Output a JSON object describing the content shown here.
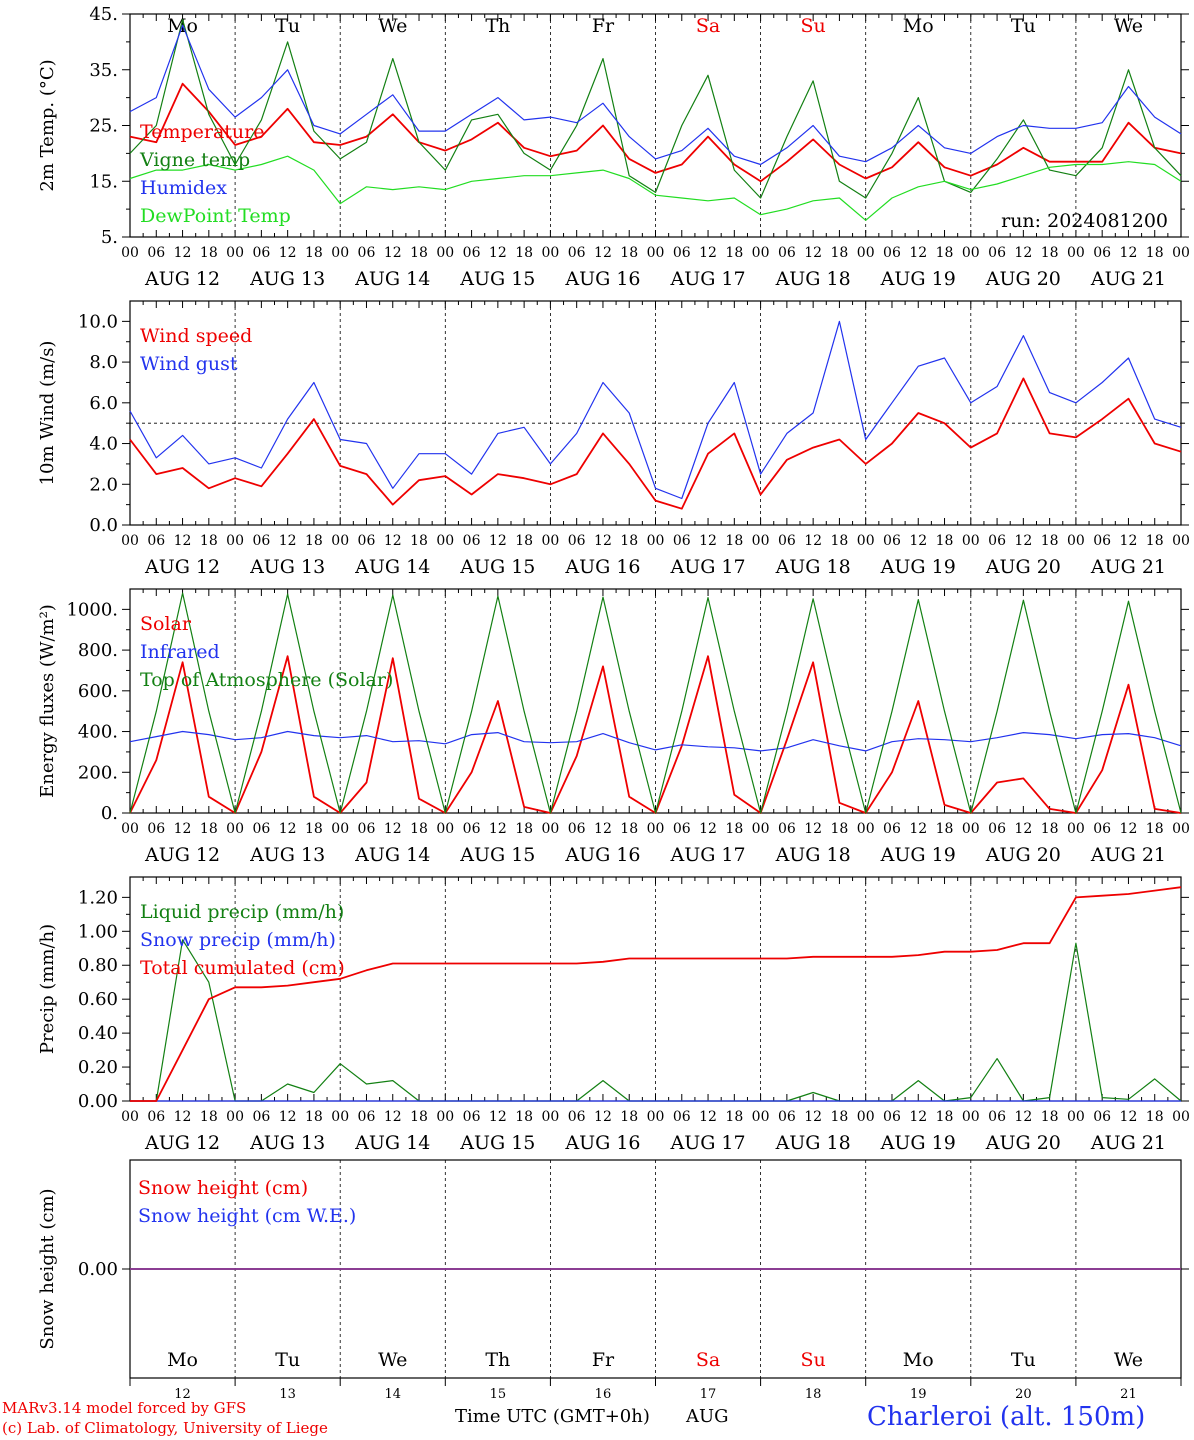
{
  "colors": {
    "red": "#ee0000",
    "blue": "#2233ee",
    "green": "#138013",
    "lightgreen": "#22dd22",
    "purple": "#7b3fa0",
    "axis": "#000000",
    "grid": "#000000"
  },
  "days": {
    "weekday_labels": [
      "Mo",
      "Tu",
      "We",
      "Th",
      "Fr",
      "Sa",
      "Su",
      "Mo",
      "Tu",
      "We"
    ],
    "weekend": [
      false,
      false,
      false,
      false,
      false,
      true,
      true,
      false,
      false,
      false
    ],
    "date_labels": [
      "AUG 12",
      "AUG 13",
      "AUG 14",
      "AUG 15",
      "AUG 16",
      "AUG 17",
      "AUG 18",
      "AUG 19",
      "AUG 20",
      "AUG 21"
    ],
    "hour_labels": [
      "00",
      "06",
      "12",
      "18"
    ],
    "final_hour_label": "00",
    "day_numbers": [
      "12",
      "13",
      "14",
      "15",
      "16",
      "17",
      "18",
      "19",
      "20",
      "21"
    ]
  },
  "footer": {
    "model": "MARv3.14 model forced by GFS",
    "credit": "(c) Lab. of Climatology, University of Liege",
    "xlabel": "Time UTC (GMT+0h)",
    "month": "AUG",
    "station": "Charleroi (alt. 150m)"
  },
  "chart_data": [
    {
      "type": "line",
      "ylabel": "2m Temp. (°C)",
      "ylim": [
        5,
        45
      ],
      "yticks": [
        5,
        15,
        25,
        35,
        45
      ],
      "ytick_labels": [
        "5.",
        "15.",
        "25.",
        "35.",
        "45."
      ],
      "annotation": "run: 2024081200",
      "x_hours": [
        0,
        6,
        12,
        18,
        24,
        30,
        36,
        42,
        48,
        54,
        60,
        66,
        72,
        78,
        84,
        90,
        96,
        102,
        108,
        114,
        120,
        126,
        132,
        138,
        144,
        150,
        156,
        162,
        168,
        174,
        180,
        186,
        192,
        198,
        204,
        210,
        216,
        222,
        228,
        234,
        240
      ],
      "series": [
        {
          "name": "Temperature",
          "color": "red",
          "values": [
            23,
            22,
            32.5,
            27.5,
            21.5,
            23,
            28,
            22,
            21.5,
            23,
            27,
            22,
            20.5,
            22.5,
            25.5,
            21,
            19.5,
            20.5,
            25,
            19,
            16.5,
            18,
            23,
            18,
            15,
            18.5,
            22.5,
            18,
            15.5,
            17.5,
            22,
            17.5,
            16,
            18,
            21,
            18.5,
            18.5,
            18.5,
            25.5,
            21,
            20
          ]
        },
        {
          "name": "Vigne temp",
          "color": "green",
          "values": [
            20,
            25,
            44,
            27,
            18,
            26,
            40,
            24,
            19,
            22,
            37,
            22,
            17,
            26,
            27,
            20,
            17,
            25,
            37,
            16,
            13,
            25,
            34,
            17,
            12,
            23,
            33,
            15,
            12,
            20,
            30,
            15,
            13,
            19,
            26,
            17,
            16,
            21,
            35,
            21,
            16
          ]
        },
        {
          "name": "Humidex",
          "color": "blue",
          "values": [
            27.5,
            30,
            43,
            31.5,
            26.5,
            30,
            35,
            25,
            23.5,
            27,
            30.5,
            24,
            24,
            27,
            30,
            26,
            26.5,
            25.5,
            29,
            23,
            19,
            20.5,
            24.5,
            19.5,
            18,
            21,
            25,
            19.5,
            18.5,
            21,
            25,
            21,
            20,
            23,
            25,
            24.5,
            24.5,
            25.5,
            32,
            26.5,
            23.5
          ]
        },
        {
          "name": "DewPoint Temp",
          "color": "lightgreen",
          "values": [
            15.5,
            17,
            17,
            18,
            17,
            18,
            19.5,
            17,
            11,
            14,
            13.5,
            14,
            13.5,
            15,
            15.5,
            16,
            16,
            16.5,
            17,
            15.5,
            12.5,
            12,
            11.5,
            12,
            9,
            10,
            11.5,
            12,
            8,
            12,
            14,
            15,
            13.5,
            14.5,
            16,
            17.5,
            18,
            18,
            18.5,
            18,
            15
          ]
        }
      ]
    },
    {
      "type": "line",
      "ylabel": "10m Wind (m/s)",
      "ylim": [
        0,
        11
      ],
      "yticks": [
        0,
        2,
        4,
        6,
        8,
        10
      ],
      "ytick_labels": [
        "0.0",
        "2.0",
        "4.0",
        "6.0",
        "8.0",
        "10.0"
      ],
      "reference_line": 5,
      "x_hours": [
        0,
        6,
        12,
        18,
        24,
        30,
        36,
        42,
        48,
        54,
        60,
        66,
        72,
        78,
        84,
        90,
        96,
        102,
        108,
        114,
        120,
        126,
        132,
        138,
        144,
        150,
        156,
        162,
        168,
        174,
        180,
        186,
        192,
        198,
        204,
        210,
        216,
        222,
        228,
        234,
        240
      ],
      "series": [
        {
          "name": "Wind speed",
          "color": "red",
          "values": [
            4.2,
            2.5,
            2.8,
            1.8,
            2.3,
            1.9,
            3.5,
            5.2,
            2.9,
            2.5,
            1.0,
            2.2,
            2.4,
            1.5,
            2.5,
            2.3,
            2.0,
            2.5,
            4.5,
            3.0,
            1.2,
            0.8,
            3.5,
            4.5,
            1.5,
            3.2,
            3.8,
            4.2,
            3.0,
            4.0,
            5.5,
            5.0,
            3.8,
            4.5,
            7.2,
            4.5,
            4.3,
            5.2,
            6.2,
            4.0,
            3.6
          ]
        },
        {
          "name": "Wind gust",
          "color": "blue",
          "values": [
            5.6,
            3.3,
            4.4,
            3.0,
            3.3,
            2.8,
            5.2,
            7.0,
            4.2,
            4.0,
            1.8,
            3.5,
            3.5,
            2.5,
            4.5,
            4.8,
            3.0,
            4.5,
            7.0,
            5.5,
            1.8,
            1.3,
            5.0,
            7.0,
            2.5,
            4.5,
            5.5,
            10.0,
            4.2,
            6.0,
            7.8,
            8.2,
            6.0,
            6.8,
            9.3,
            6.5,
            6.0,
            7.0,
            8.2,
            5.2,
            4.8
          ]
        }
      ]
    },
    {
      "type": "line",
      "ylabel": "Energy fluxes (W/m²)",
      "ylim": [
        0,
        1100
      ],
      "yticks": [
        0,
        200,
        400,
        600,
        800,
        1000
      ],
      "ytick_labels": [
        "0.",
        "200.",
        "400.",
        "600.",
        "800.",
        "1000."
      ],
      "x_hours": [
        0,
        6,
        12,
        18,
        24,
        30,
        36,
        42,
        48,
        54,
        60,
        66,
        72,
        78,
        84,
        90,
        96,
        102,
        108,
        114,
        120,
        126,
        132,
        138,
        144,
        150,
        156,
        162,
        168,
        174,
        180,
        186,
        192,
        198,
        204,
        210,
        216,
        222,
        228,
        234,
        240
      ],
      "series": [
        {
          "name": "Solar",
          "color": "red",
          "values": [
            0,
            260,
            740,
            80,
            0,
            300,
            770,
            80,
            0,
            150,
            760,
            70,
            0,
            200,
            550,
            30,
            0,
            280,
            720,
            80,
            0,
            330,
            770,
            90,
            0,
            360,
            740,
            50,
            0,
            200,
            550,
            40,
            0,
            150,
            170,
            20,
            0,
            210,
            630,
            20,
            0
          ]
        },
        {
          "name": "Infrared",
          "color": "blue",
          "values": [
            350,
            375,
            400,
            385,
            360,
            370,
            400,
            380,
            370,
            380,
            350,
            355,
            340,
            385,
            395,
            350,
            345,
            350,
            390,
            345,
            310,
            335,
            325,
            320,
            305,
            320,
            360,
            330,
            305,
            350,
            365,
            360,
            350,
            370,
            395,
            385,
            365,
            385,
            390,
            370,
            330
          ]
        },
        {
          "name": "Top of Atmosphere (Solar)",
          "color": "green",
          "values": [
            0,
            500,
            1080,
            500,
            0,
            500,
            1075,
            500,
            0,
            500,
            1070,
            500,
            0,
            500,
            1065,
            500,
            0,
            500,
            1060,
            500,
            0,
            500,
            1058,
            500,
            0,
            500,
            1052,
            500,
            0,
            500,
            1048,
            500,
            0,
            500,
            1045,
            500,
            0,
            500,
            1040,
            500,
            0
          ]
        }
      ]
    },
    {
      "type": "line",
      "ylabel": "Precip (mm/h)",
      "ylim": [
        0,
        1.32
      ],
      "yticks": [
        0,
        0.2,
        0.4,
        0.6,
        0.8,
        1.0,
        1.2
      ],
      "ytick_labels": [
        "0.00",
        "0.20",
        "0.40",
        "0.60",
        "0.80",
        "1.00",
        "1.20"
      ],
      "x_hours": [
        0,
        6,
        12,
        18,
        24,
        30,
        36,
        42,
        48,
        54,
        60,
        66,
        72,
        78,
        84,
        90,
        96,
        102,
        108,
        114,
        120,
        126,
        132,
        138,
        144,
        150,
        156,
        162,
        168,
        174,
        180,
        186,
        192,
        198,
        204,
        210,
        216,
        222,
        228,
        234,
        240
      ],
      "series": [
        {
          "name": "Liquid precip (mm/h)",
          "color": "green",
          "values": [
            0,
            0,
            0.95,
            0.7,
            0,
            0,
            0.1,
            0.05,
            0.22,
            0.1,
            0.12,
            0,
            0,
            0,
            0,
            0,
            0,
            0,
            0.12,
            0,
            0,
            0,
            0,
            0,
            0,
            0,
            0.05,
            0,
            0,
            0,
            0.12,
            0,
            0.02,
            0.25,
            0,
            0.02,
            0.93,
            0.02,
            0.01,
            0.13,
            0
          ]
        },
        {
          "name": "Snow precip (mm/h)",
          "color": "blue",
          "values": [
            0,
            0,
            0,
            0,
            0,
            0,
            0,
            0,
            0,
            0,
            0,
            0,
            0,
            0,
            0,
            0,
            0,
            0,
            0,
            0,
            0,
            0,
            0,
            0,
            0,
            0,
            0,
            0,
            0,
            0,
            0,
            0,
            0,
            0,
            0,
            0,
            0,
            0,
            0,
            0,
            0
          ]
        },
        {
          "name": "Total cumulated (cm)",
          "color": "red",
          "values": [
            0,
            0,
            0.3,
            0.6,
            0.67,
            0.67,
            0.68,
            0.7,
            0.72,
            0.77,
            0.81,
            0.81,
            0.81,
            0.81,
            0.81,
            0.81,
            0.81,
            0.81,
            0.82,
            0.84,
            0.84,
            0.84,
            0.84,
            0.84,
            0.84,
            0.84,
            0.85,
            0.85,
            0.85,
            0.85,
            0.86,
            0.88,
            0.88,
            0.89,
            0.93,
            0.93,
            1.2,
            1.21,
            1.22,
            1.24,
            1.26
          ]
        }
      ]
    },
    {
      "type": "line",
      "ylabel": "Snow height (cm)",
      "ylim": [
        -1,
        1
      ],
      "yticks": [
        0
      ],
      "ytick_labels": [
        "0.00"
      ],
      "x_hours": [
        0,
        240
      ],
      "series": [
        {
          "name": "Snow height (cm)",
          "color": "red",
          "values": [
            0,
            0
          ]
        },
        {
          "name": "Snow height (cm W.E.)",
          "color": "blue",
          "values": [
            0,
            0
          ]
        }
      ]
    }
  ]
}
